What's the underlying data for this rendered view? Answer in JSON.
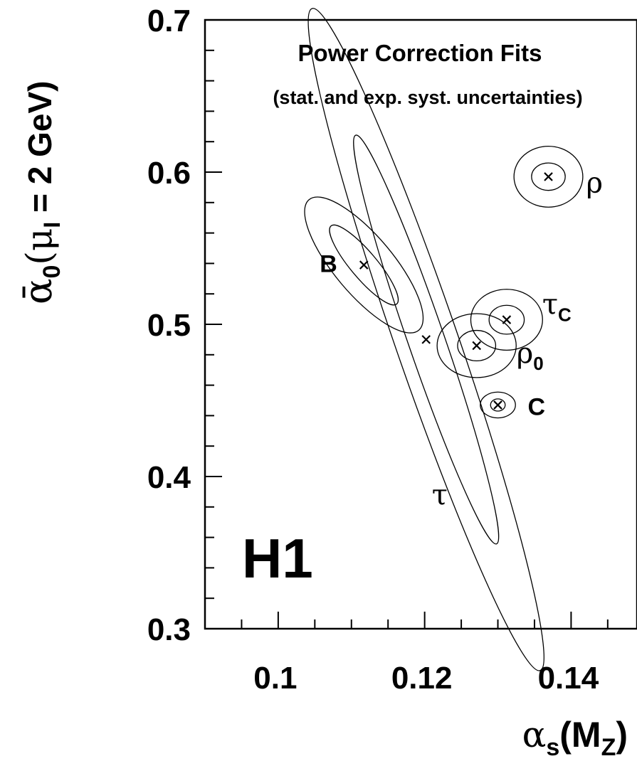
{
  "chart_data": {
    "type": "scatter",
    "title": "Power Correction Fits",
    "subtitle": "(stat. and exp. syst. uncertainties)",
    "watermark": "H1",
    "xlim": [
      0.09,
      0.149
    ],
    "ylim": [
      0.3,
      0.7
    ],
    "x_major_ticks": [
      0.1,
      0.12,
      0.14
    ],
    "x_tick_labels": [
      "0.1",
      "0.12",
      "0.14"
    ],
    "y_major_ticks": [
      0.3,
      0.4,
      0.5,
      0.6,
      0.7
    ],
    "y_tick_labels": [
      "0.3",
      "0.4",
      "0.5",
      "0.6",
      "0.7"
    ],
    "x_minor_step": 0.005,
    "y_minor_step": 0.02,
    "xlabel": {
      "greek": "α",
      "sub": "s",
      "rest": "(M",
      "sub2": "Z",
      "close": ")"
    },
    "ylabel": {
      "greek": "ᾱ",
      "sub": "0",
      "open": "(μ",
      "sub2": "I",
      "rest": " = 2 GeV)"
    },
    "grid": false,
    "points": [
      {
        "name": "B",
        "label": "B",
        "label_sub": "",
        "style": "bold",
        "x": 0.1117,
        "y": 0.539,
        "contours": [
          {
            "rx": 0.0018,
            "ry": 0.0335,
            "rot": -40
          },
          {
            "rx": 0.004,
            "ry": 0.056,
            "rot": -40
          }
        ]
      },
      {
        "name": "tau",
        "label": "τ",
        "label_sub": "",
        "style": "greek",
        "x": 0.1202,
        "y": 0.49,
        "contours": [
          {
            "rx": 0.0025,
            "ry": 0.142,
            "rot": -19
          },
          {
            "rx": 0.0043,
            "ry": 0.23,
            "rot": -19
          }
        ]
      },
      {
        "name": "rho0",
        "label": "ρ",
        "label_sub": "0",
        "style": "greek",
        "x": 0.1271,
        "y": 0.486,
        "contours": [
          {
            "rx": 0.0026,
            "ry": 0.01,
            "rot": 0
          },
          {
            "rx": 0.0054,
            "ry": 0.021,
            "rot": 0
          }
        ]
      },
      {
        "name": "tauC",
        "label": "τ",
        "label_sub": "C",
        "style": "greek",
        "x": 0.1312,
        "y": 0.503,
        "contours": [
          {
            "rx": 0.0024,
            "ry": 0.0095,
            "rot": 0
          },
          {
            "rx": 0.0049,
            "ry": 0.02,
            "rot": 0
          }
        ]
      },
      {
        "name": "C",
        "label": "C",
        "label_sub": "",
        "style": "bold",
        "x": 0.13,
        "y": 0.447,
        "contours": [
          {
            "rx": 0.001,
            "ry": 0.004,
            "rot": 0
          },
          {
            "rx": 0.0024,
            "ry": 0.0085,
            "rot": 0
          }
        ]
      },
      {
        "name": "rho",
        "label": "ρ",
        "label_sub": "",
        "style": "greek",
        "x": 0.1369,
        "y": 0.597,
        "contours": [
          {
            "rx": 0.0023,
            "ry": 0.009,
            "rot": 0
          },
          {
            "rx": 0.0047,
            "ry": 0.02,
            "rot": 0
          }
        ]
      }
    ]
  }
}
